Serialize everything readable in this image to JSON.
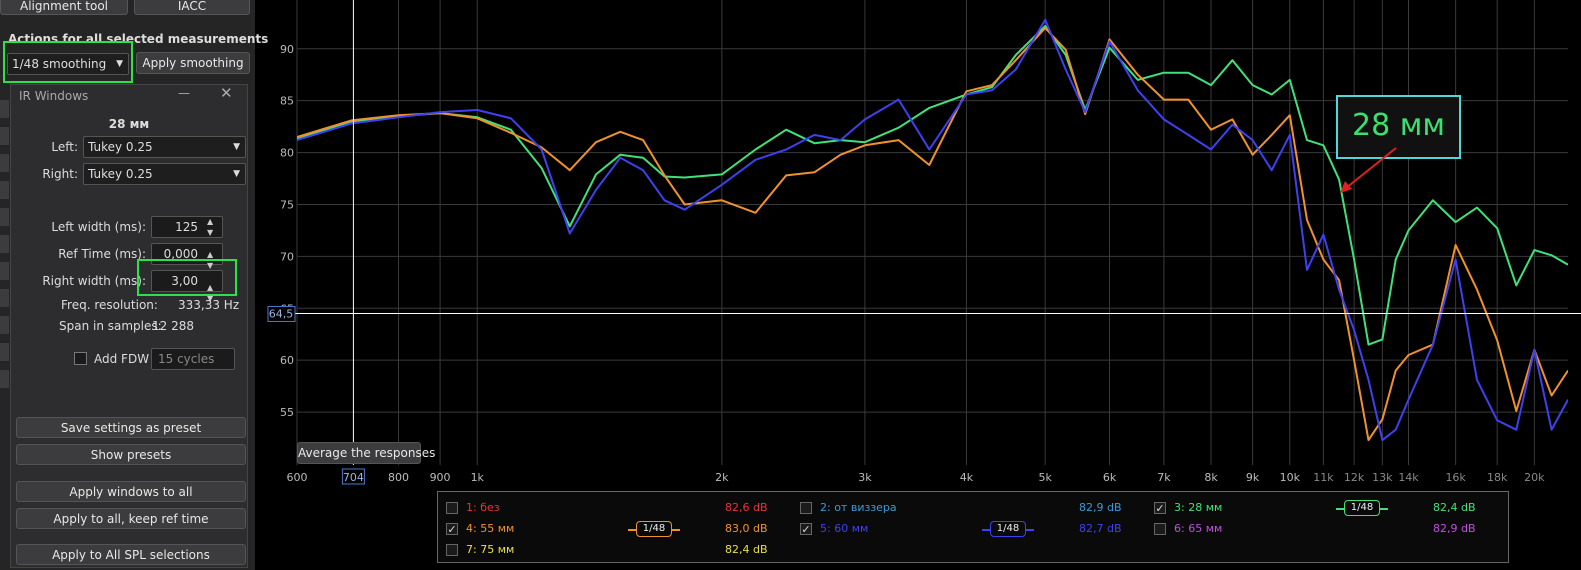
{
  "toolbar": {
    "buttons": [
      "Alignment tool",
      "IACC"
    ]
  },
  "actions": {
    "heading": "Actions for all selected measurements",
    "smoothing": "1/48 smoothing",
    "apply": "Apply smoothing"
  },
  "ir_windows": {
    "title": "IR Windows",
    "measurement": "28 мм",
    "left_label": "Left:",
    "left_window": "Tukey 0.25",
    "right_label": "Right:",
    "right_window": "Tukey 0.25",
    "fields": [
      {
        "label": "Left width (ms):",
        "value": "125"
      },
      {
        "label": "Ref Time (ms):",
        "value": "0,000"
      },
      {
        "label": "Right width (ms):",
        "value": "3,00"
      }
    ],
    "info": [
      {
        "label": "Freq. resolution:",
        "value": "333,33 Hz"
      },
      {
        "label": "Span in samples:",
        "value": "12 288"
      }
    ],
    "fdw": {
      "label": "Add FDW",
      "checked": false,
      "cycles": "15 cycles"
    },
    "buttons": [
      "Save settings as preset",
      "Show presets",
      "Apply windows to all",
      "Apply to all, keep ref time",
      "Apply to All SPL selections"
    ]
  },
  "average_button": "Average the responses",
  "annotation": "28 мм",
  "chart_data": {
    "type": "line",
    "log_x": true,
    "grid": true,
    "xlim": [
      600,
      22000
    ],
    "ylim": [
      49.9,
      94.7
    ],
    "xticks": [
      600,
      800,
      900,
      {
        "value": 1000,
        "label": "1k"
      },
      {
        "value": 2000,
        "label": "2k"
      },
      {
        "value": 3000,
        "label": "3k"
      },
      {
        "value": 4000,
        "label": "4k"
      },
      {
        "value": 5000,
        "label": "5k"
      },
      {
        "value": 6000,
        "label": "6k"
      },
      {
        "value": 7000,
        "label": "7k"
      },
      {
        "value": 8000,
        "label": "8k"
      },
      {
        "value": 9000,
        "label": "9k"
      },
      {
        "value": 10000,
        "label": "10k"
      },
      {
        "value": 11000,
        "label": "11k"
      },
      {
        "value": 12000,
        "label": "12k"
      },
      {
        "value": 13000,
        "label": "13k"
      },
      {
        "value": 14000,
        "label": "14k"
      },
      {
        "value": 16000,
        "label": "16k"
      },
      {
        "value": 18000,
        "label": "18k"
      },
      {
        "value": 20000,
        "label": "20k"
      }
    ],
    "yticks": [
      55,
      60,
      65,
      70,
      75,
      80,
      85,
      90
    ],
    "cursor": {
      "x": 704,
      "y": {
        "value": 64.5,
        "label": "64,5"
      }
    },
    "x": [
      600,
      700,
      800,
      900,
      1000,
      1100,
      1200,
      1300,
      1400,
      1500,
      1600,
      1700,
      1800,
      2000,
      2200,
      2400,
      2600,
      2800,
      3000,
      3300,
      3600,
      4000,
      4300,
      4600,
      5000,
      5300,
      5600,
      6000,
      6500,
      7000,
      7500,
      8000,
      8500,
      9000,
      9500,
      10000,
      10500,
      11000,
      11500,
      12000,
      12500,
      13000,
      13500,
      14000,
      15000,
      16000,
      17000,
      18000,
      19000,
      20000,
      21000,
      22000
    ],
    "series": [
      {
        "name": "1: без",
        "color": "#e8323c",
        "level": "82,6 dB",
        "checked": false
      },
      {
        "name": "2: от виззера",
        "color": "#3a9ad9",
        "level": "82,9 dB",
        "checked": false
      },
      {
        "name": "3: 28 мм",
        "color": "#3fe27a",
        "level": "82,4 dB",
        "checked": true,
        "smoothing": "1/48",
        "values": [
          81.3,
          83.0,
          83.5,
          83.8,
          83.4,
          82.2,
          78.5,
          72.9,
          77.9,
          79.8,
          79.5,
          77.7,
          77.6,
          77.9,
          80.3,
          82.2,
          80.9,
          81.2,
          81.0,
          82.4,
          84.3,
          85.6,
          86.3,
          89.4,
          92.2,
          89.4,
          84.1,
          90.1,
          87.0,
          87.7,
          87.7,
          86.5,
          88.9,
          86.5,
          85.6,
          87.0,
          81.2,
          80.7,
          77.4,
          69.7,
          61.5,
          62.0,
          69.7,
          72.5,
          75.4,
          73.3,
          74.7,
          72.7,
          67.2,
          70.6,
          70.1,
          69.2
        ]
      },
      {
        "name": "4: 55 мм",
        "color": "#f0922c",
        "level": "83,0 dB",
        "checked": true,
        "smoothing": "1/48",
        "values": [
          81.5,
          83.1,
          83.6,
          83.8,
          83.3,
          81.9,
          80.5,
          78.3,
          81.0,
          82.0,
          81.2,
          77.8,
          75.0,
          75.4,
          74.2,
          77.8,
          78.1,
          79.8,
          80.7,
          81.2,
          78.8,
          85.9,
          86.5,
          88.9,
          92.0,
          89.9,
          83.7,
          90.9,
          87.5,
          85.1,
          85.1,
          82.2,
          83.2,
          79.8,
          81.7,
          83.6,
          73.5,
          69.7,
          67.7,
          60.0,
          52.3,
          54.3,
          59.0,
          60.5,
          61.5,
          71.1,
          66.8,
          61.9,
          55.1,
          61.0,
          56.6,
          59.0
        ]
      },
      {
        "name": "5: 60 мм",
        "color": "#4040f0",
        "level": "82,7 dB",
        "checked": true,
        "smoothing": "1/48",
        "values": [
          81.2,
          82.8,
          83.4,
          83.9,
          84.1,
          83.3,
          80.3,
          72.2,
          76.4,
          79.5,
          78.3,
          75.4,
          74.5,
          76.9,
          79.3,
          80.3,
          81.7,
          81.2,
          83.2,
          85.1,
          80.3,
          85.6,
          86.0,
          88.0,
          92.8,
          88.0,
          83.9,
          90.7,
          86.0,
          83.2,
          81.7,
          80.3,
          82.7,
          81.2,
          78.3,
          81.7,
          68.7,
          72.1,
          66.8,
          62.9,
          58.1,
          52.3,
          53.3,
          56.2,
          61.5,
          69.7,
          58.1,
          54.2,
          53.3,
          61.0,
          53.3,
          56.2
        ]
      },
      {
        "name": "6: 65 мм",
        "color": "#c050e0",
        "level": "82,9 dB",
        "checked": false
      },
      {
        "name": "7: 75 мм",
        "color": "#e8e040",
        "level": "82,4 dB",
        "checked": false
      }
    ]
  }
}
